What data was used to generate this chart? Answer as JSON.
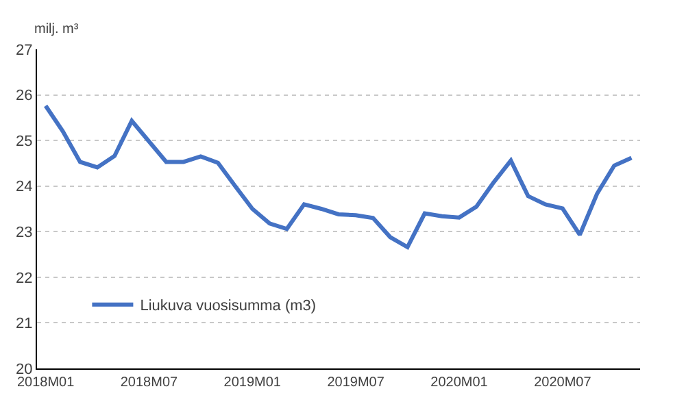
{
  "chart_data": {
    "type": "line",
    "ylabel": "milj. m³",
    "categories": [
      "2018M01",
      null,
      null,
      null,
      null,
      null,
      "2018M07",
      null,
      null,
      null,
      null,
      null,
      "2019M01",
      null,
      null,
      null,
      null,
      null,
      "2019M07",
      null,
      null,
      null,
      null,
      null,
      "2020M01",
      null,
      null,
      null,
      null,
      null,
      "2020M07",
      null,
      null,
      null,
      null
    ],
    "series": [
      {
        "name": "Liukuva vuosisumma (m3)",
        "color": "#4472c4",
        "values": [
          25.76,
          25.2,
          24.53,
          24.41,
          24.66,
          25.43,
          24.98,
          24.53,
          24.53,
          24.65,
          24.51,
          24.0,
          23.5,
          23.18,
          23.06,
          23.6,
          23.5,
          23.38,
          23.36,
          23.3,
          22.88,
          22.66,
          23.4,
          23.34,
          23.31,
          23.55,
          24.08,
          24.56,
          23.78,
          23.6,
          23.51,
          22.93,
          23.83,
          24.45,
          24.62
        ]
      }
    ],
    "ylim": [
      20,
      27
    ],
    "yticks": [
      20,
      21,
      22,
      23,
      24,
      25,
      26,
      27
    ],
    "grid": "y",
    "legend": "bottom left",
    "marker": "none",
    "line_style": "solid"
  }
}
